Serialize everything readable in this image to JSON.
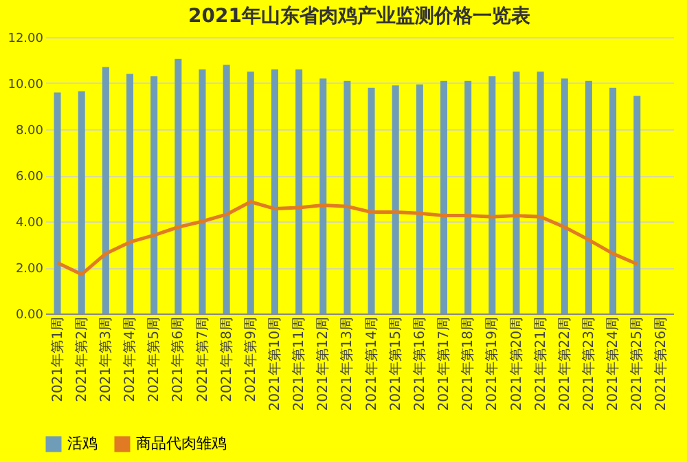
{
  "chart_data": {
    "type": "bar",
    "title": "2021年山东省肉鸡产业监测价格一览表",
    "categories": [
      "2021年第1周",
      "2021年第2周",
      "2021年第3周",
      "2021年第4周",
      "2021年第5周",
      "2021年第6周",
      "2021年第7周",
      "2021年第8周",
      "2021年第9周",
      "2021年第10周",
      "2021年第11周",
      "2021年第12周",
      "2021年第13周",
      "2021年第14周",
      "2021年第15周",
      "2021年第16周",
      "2021年第17周",
      "2021年第18周",
      "2021年第19周",
      "2021年第20周",
      "2021年第21周",
      "2021年第22周",
      "2021年第23周",
      "2021年第24周",
      "2021年第25周",
      "2021年第26周"
    ],
    "series": [
      {
        "name": "活鸡",
        "color": "#6f9db8",
        "values": [
          9.6,
          9.65,
          10.7,
          10.4,
          10.3,
          11.05,
          10.6,
          10.8,
          10.5,
          10.6,
          10.6,
          10.2,
          10.1,
          9.8,
          9.9,
          9.95,
          10.1,
          10.1,
          10.3,
          10.5,
          10.5,
          10.2,
          10.1,
          9.8,
          9.45,
          null
        ]
      },
      {
        "name": "商品代肉雏鸡",
        "type": "line",
        "color": "#e07b24",
        "values": [
          2.2,
          1.7,
          2.6,
          3.1,
          3.4,
          3.75,
          4.0,
          4.3,
          4.85,
          4.55,
          4.6,
          4.7,
          4.65,
          4.4,
          4.4,
          4.35,
          4.25,
          4.25,
          4.2,
          4.25,
          4.2,
          3.75,
          3.2,
          2.6,
          2.15,
          null
        ]
      }
    ],
    "ylim": [
      0,
      12
    ],
    "yticks": [
      {
        "value": 0,
        "label": "0.00"
      },
      {
        "value": 2,
        "label": "2.00"
      },
      {
        "value": 4,
        "label": "4.00"
      },
      {
        "value": 6,
        "label": "6.00"
      },
      {
        "value": 8,
        "label": "8.00"
      },
      {
        "value": 10,
        "label": "10.00"
      },
      {
        "value": 12,
        "label": "12.00"
      }
    ],
    "grid": "y",
    "legend": "bottom",
    "marker": "none",
    "line_style": "solid"
  }
}
